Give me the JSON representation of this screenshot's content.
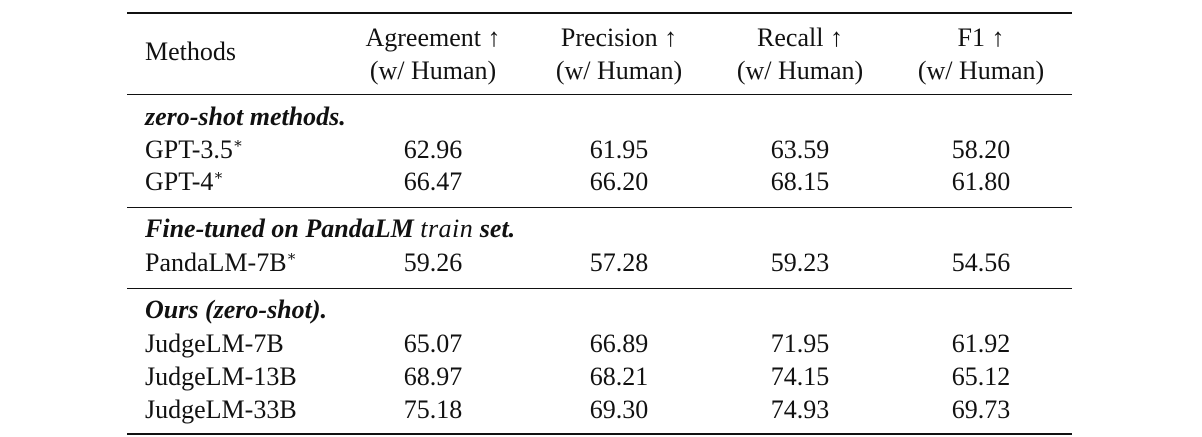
{
  "table": {
    "header": {
      "method_label": "Methods",
      "columns": [
        {
          "line1": "Agreement ↑",
          "line2": "(w/ Human)"
        },
        {
          "line1": "Precision ↑",
          "line2": "(w/ Human)"
        },
        {
          "line1": "Recall ↑",
          "line2": "(w/ Human)"
        },
        {
          "line1": "F1 ↑",
          "line2": "(w/ Human)"
        }
      ]
    },
    "sections": [
      {
        "title": "zero-shot methods.",
        "rows": [
          {
            "method": "GPT-3.5",
            "marker": "∗",
            "values": [
              "62.96",
              "61.95",
              "63.59",
              "58.20"
            ]
          },
          {
            "method": "GPT-4",
            "marker": "∗",
            "values": [
              "66.47",
              "66.20",
              "68.15",
              "61.80"
            ]
          }
        ]
      },
      {
        "title_pre": "Fine-tuned on PandaLM",
        "title_tt": "train",
        "title_post": "set.",
        "rows": [
          {
            "method": "PandaLM-7B",
            "marker": "∗",
            "values": [
              "59.26",
              "57.28",
              "59.23",
              "54.56"
            ]
          }
        ]
      },
      {
        "title": "Ours (zero-shot).",
        "rows": [
          {
            "method": "JudgeLM-7B",
            "values": [
              "65.07",
              "66.89",
              "71.95",
              "61.92"
            ]
          },
          {
            "method": "JudgeLM-13B",
            "values": [
              "68.97",
              "68.21",
              "74.15",
              "65.12"
            ]
          },
          {
            "method": "JudgeLM-33B",
            "values": [
              "75.18",
              "69.30",
              "74.93",
              "69.73"
            ]
          }
        ]
      }
    ]
  }
}
